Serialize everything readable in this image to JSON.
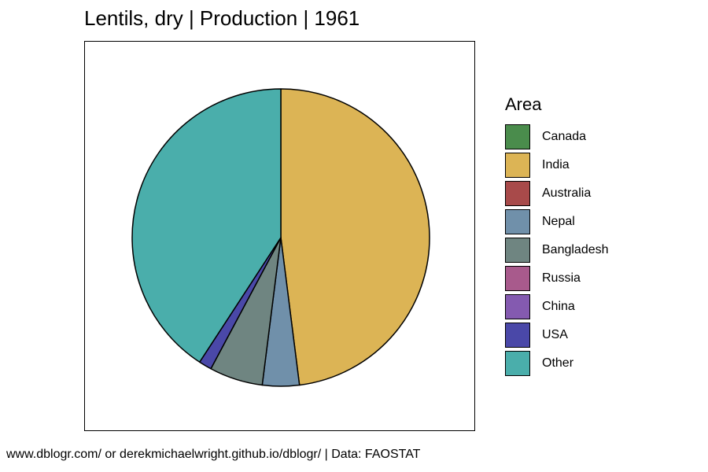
{
  "chart_data": {
    "type": "pie",
    "title": "Lentils, dry | Production | 1961",
    "legend_title": "Area",
    "legend_position": "right",
    "categories": [
      "Canada",
      "India",
      "Australia",
      "Nepal",
      "Bangladesh",
      "Russia",
      "China",
      "USA",
      "Other"
    ],
    "values": [
      0.0,
      48.0,
      0.0,
      4.0,
      5.8,
      0.0,
      0.0,
      1.4,
      40.8
    ],
    "colors": [
      "#4a8c4c",
      "#dcb455",
      "#a84a4a",
      "#7090aa",
      "#6f8581",
      "#a85a8c",
      "#845ab0",
      "#4a48a8",
      "#4aaeab"
    ],
    "start_angle_deg": 0,
    "direction": "clockwise",
    "caption": "www.dblogr.com/ or derekmichaelwright.github.io/dblogr/ | Data: FAOSTAT"
  }
}
